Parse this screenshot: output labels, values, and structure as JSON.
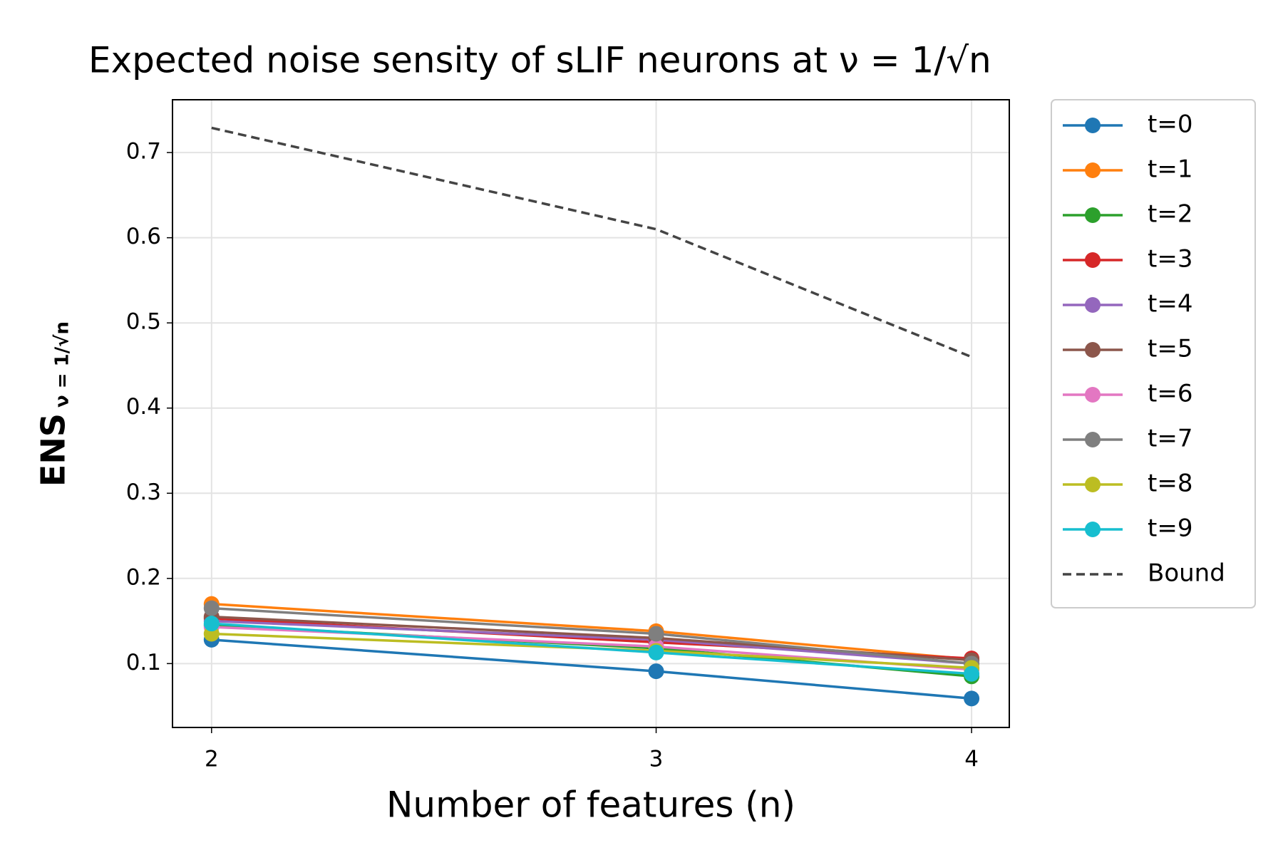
{
  "chart_data": {
    "type": "line",
    "title": "Expected noise sensity of sLIF neurons at ν = 1/√n",
    "xlabel": "Number of features (n)",
    "ylabel": "ENS",
    "ylabel_subscript": "ν = 1/√n",
    "x": [
      2,
      3,
      4
    ],
    "xscale": "log",
    "xlim": [
      1.93,
      4.14
    ],
    "xticks": [
      2,
      3,
      4
    ],
    "ylim": [
      0.025,
      0.762
    ],
    "yticks": [
      0.1,
      0.2,
      0.3,
      0.4,
      0.5,
      0.6,
      0.7
    ],
    "grid": true,
    "legend": "outside right",
    "series": [
      {
        "name": "t=0",
        "color": "#1f77b4",
        "values": [
          0.128,
          0.091,
          0.059
        ]
      },
      {
        "name": "t=1",
        "color": "#ff7f0e",
        "values": [
          0.17,
          0.138,
          0.105
        ]
      },
      {
        "name": "t=2",
        "color": "#2ca02c",
        "values": [
          0.145,
          0.118,
          0.085
        ]
      },
      {
        "name": "t=3",
        "color": "#d62728",
        "values": [
          0.153,
          0.125,
          0.106
        ]
      },
      {
        "name": "t=4",
        "color": "#9467bd",
        "values": [
          0.15,
          0.128,
          0.1
        ]
      },
      {
        "name": "t=5",
        "color": "#8c564b",
        "values": [
          0.155,
          0.13,
          0.104
        ]
      },
      {
        "name": "t=6",
        "color": "#e377c2",
        "values": [
          0.143,
          0.12,
          0.093
        ]
      },
      {
        "name": "t=7",
        "color": "#7f7f7f",
        "values": [
          0.165,
          0.135,
          0.1
        ]
      },
      {
        "name": "t=8",
        "color": "#bcbd22",
        "values": [
          0.135,
          0.115,
          0.095
        ]
      },
      {
        "name": "t=9",
        "color": "#17becf",
        "values": [
          0.147,
          0.113,
          0.088
        ]
      },
      {
        "name": "Bound",
        "color": "#444444",
        "dashed": true,
        "markers": false,
        "values": [
          0.729,
          0.61,
          0.46
        ]
      }
    ]
  }
}
